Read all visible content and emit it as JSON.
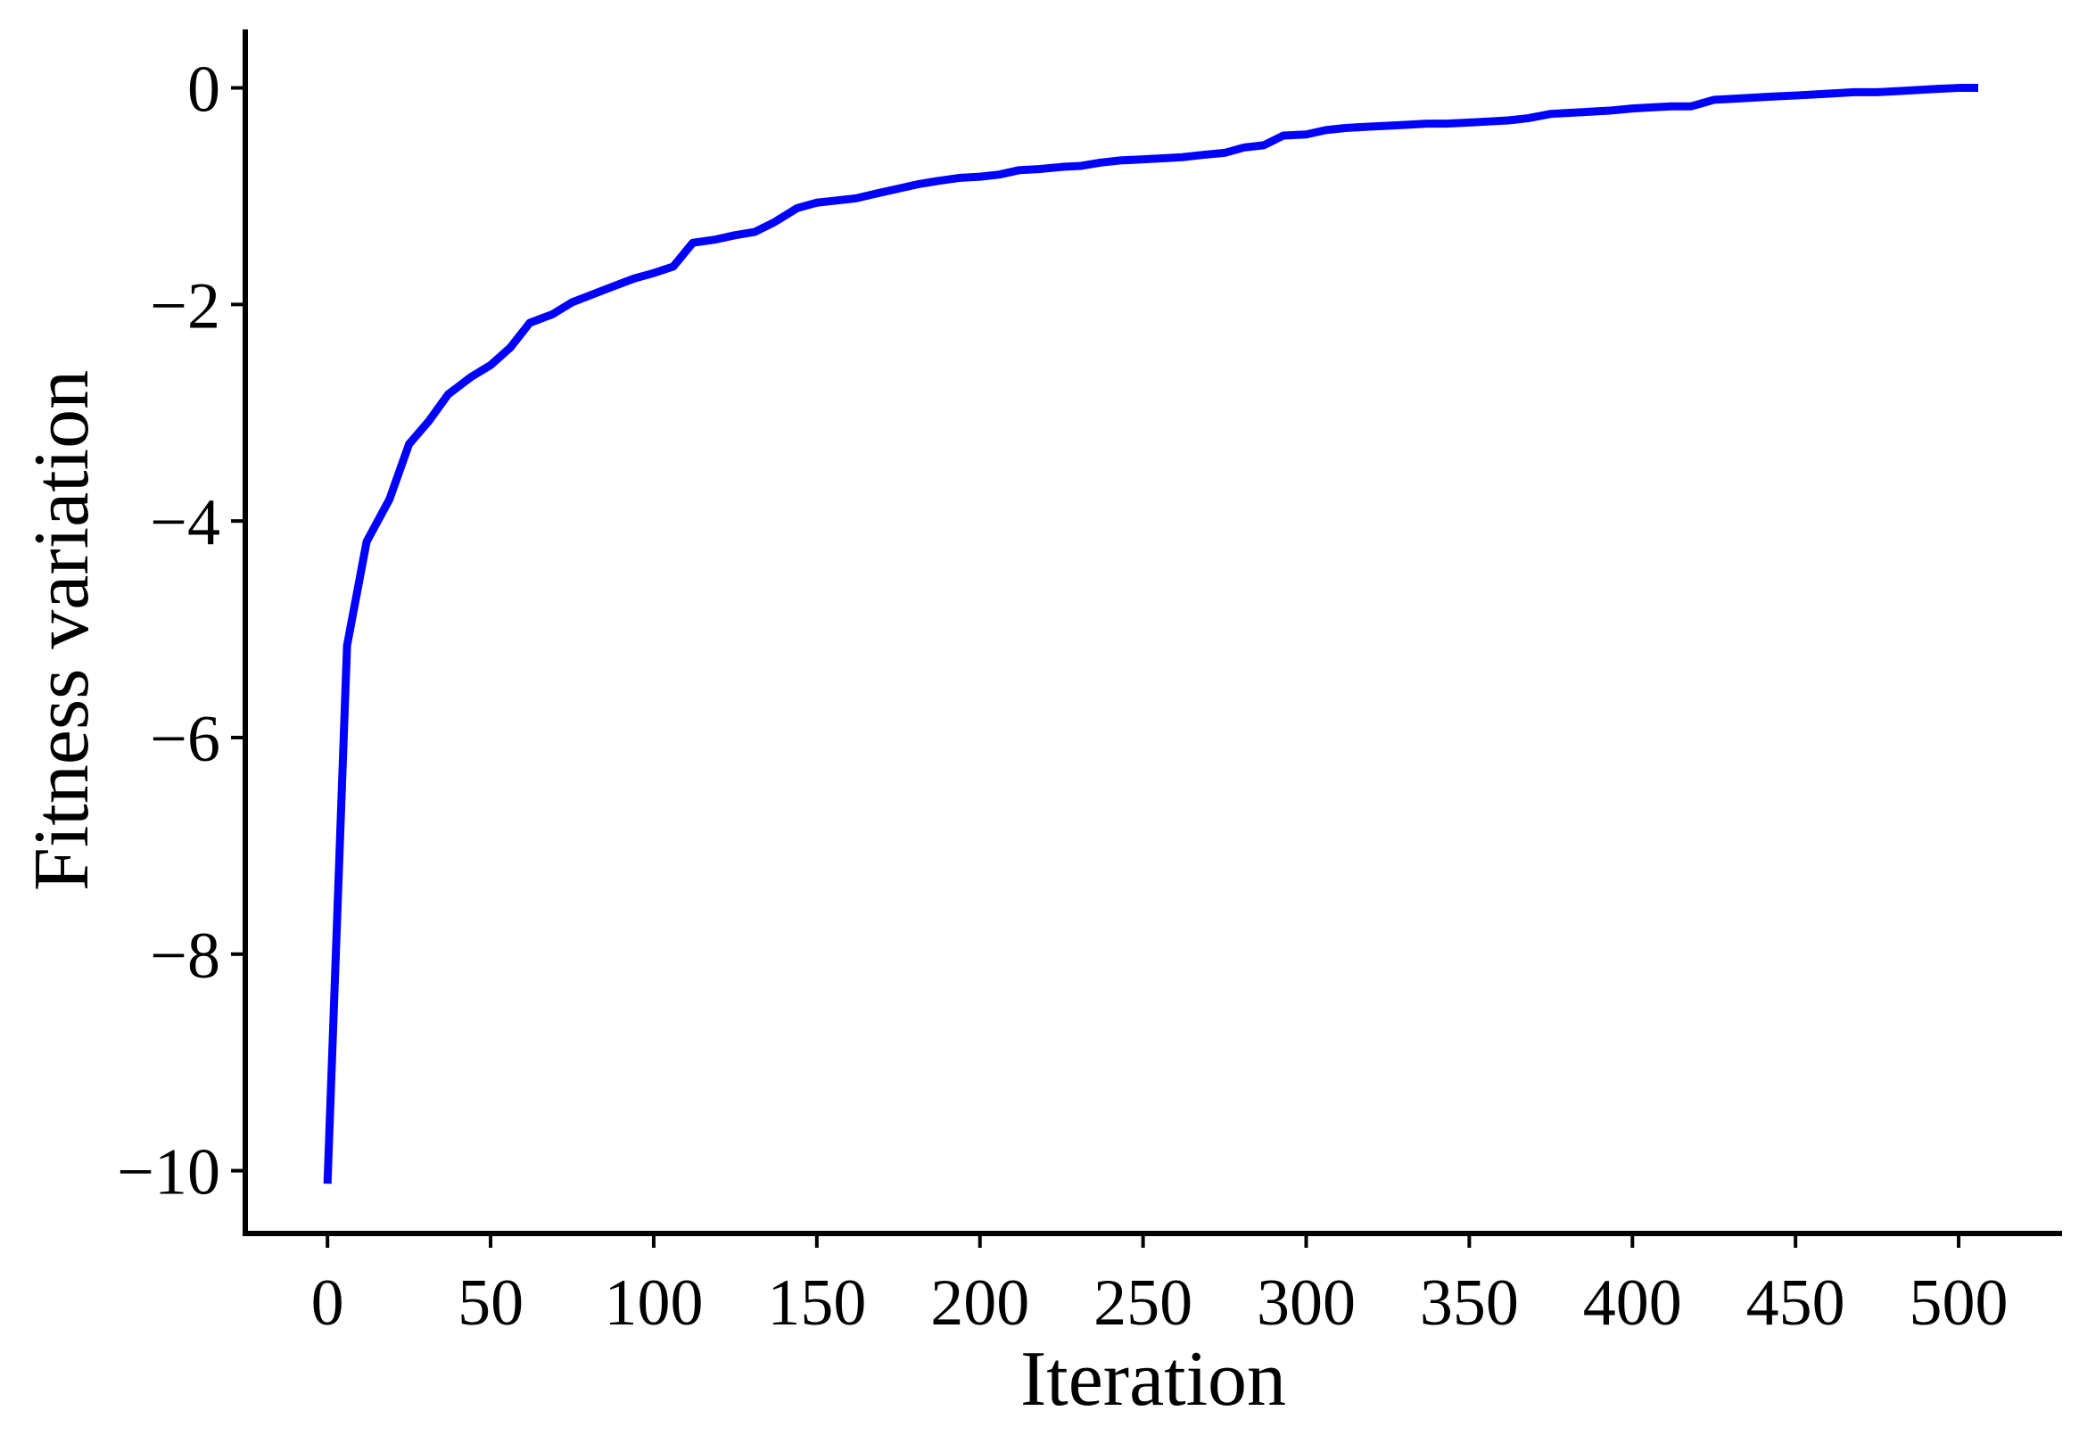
{
  "chart_data": {
    "type": "line",
    "x_label": "Iteration",
    "y_label": "Fitness variation",
    "x": [
      0,
      6,
      12,
      19,
      25,
      31,
      37,
      44,
      50,
      56,
      62,
      69,
      75,
      81,
      87,
      94,
      100,
      106,
      112,
      119,
      125,
      131,
      137,
      144,
      150,
      156,
      162,
      169,
      175,
      181,
      187,
      194,
      200,
      206,
      212,
      218,
      225,
      231,
      237,
      243,
      250,
      256,
      262,
      268,
      275,
      281,
      287,
      293,
      300,
      306,
      312,
      318,
      325,
      331,
      337,
      343,
      350,
      356,
      362,
      368,
      375,
      381,
      387,
      393,
      400,
      406,
      412,
      418,
      425,
      431,
      437,
      443,
      450,
      456,
      462,
      468,
      475,
      481,
      487,
      493,
      500,
      506
    ],
    "series": [
      {
        "name": "Fitness variation",
        "color": "#0000ff",
        "values": [
          -10.12,
          -5.15,
          -4.19,
          -3.8,
          -3.29,
          -3.08,
          -2.83,
          -2.67,
          -2.56,
          -2.4,
          -2.17,
          -2.09,
          -1.98,
          -1.91,
          -1.84,
          -1.76,
          -1.71,
          -1.65,
          -1.43,
          -1.4,
          -1.36,
          -1.33,
          -1.24,
          -1.11,
          -1.06,
          -1.04,
          -1.02,
          -0.97,
          -0.93,
          -0.89,
          -0.86,
          -0.83,
          -0.82,
          -0.8,
          -0.76,
          -0.75,
          -0.73,
          -0.72,
          -0.69,
          -0.67,
          -0.66,
          -0.65,
          -0.64,
          -0.62,
          -0.6,
          -0.55,
          -0.53,
          -0.44,
          -0.43,
          -0.39,
          -0.37,
          -0.36,
          -0.35,
          -0.34,
          -0.33,
          -0.33,
          -0.32,
          -0.31,
          -0.3,
          -0.28,
          -0.24,
          -0.23,
          -0.22,
          -0.21,
          -0.19,
          -0.18,
          -0.17,
          -0.17,
          -0.11,
          -0.1,
          -0.09,
          -0.08,
          -0.07,
          -0.06,
          -0.05,
          -0.04,
          -0.04,
          -0.03,
          -0.02,
          -0.01,
          0.0,
          0.0
        ]
      }
    ],
    "xlim": [
      -25.2,
      531.7
    ],
    "ylim": [
      -10.58,
      0.54
    ],
    "xticks": [
      0,
      50,
      100,
      150,
      200,
      250,
      300,
      350,
      400,
      450,
      500
    ],
    "yticks": [
      {
        "value": -10,
        "label": "−10"
      },
      {
        "value": -8,
        "label": "−8"
      },
      {
        "value": -6,
        "label": "−6"
      },
      {
        "value": -4,
        "label": "−4"
      },
      {
        "value": -2,
        "label": "−2"
      },
      0
    ],
    "grid": false
  }
}
